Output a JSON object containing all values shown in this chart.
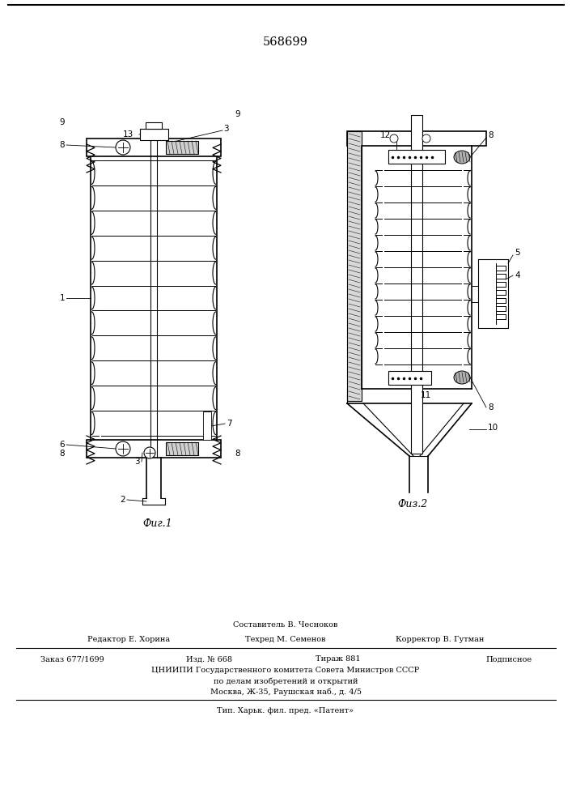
{
  "patent_number": "568699",
  "bg": "#ffffff",
  "fig1_caption": "Фиг.1",
  "fig2_caption": "Физ.2",
  "footer": {
    "sostavitel": "Составитель В. Чесноков",
    "redaktor": "Редактор Е. Хорина",
    "tehred": "Техред М. Семенов",
    "korrektor": "Корректор В. Гутман",
    "zakaz": "Заказ 677/1699",
    "izd": "Изд. № 668",
    "tirazh": "Тираж 881",
    "podpisnoe": "Подписное",
    "cniiipi1": "ЦНИИПИ Государственного комитета Совета Министров СССР",
    "cniiipi2": "по делам изобретений и открытий",
    "cniiipi3": "Москва, Ж-35, Раушская наб., д. 4/5",
    "tip": "Тип. Харьк. фил. пред. «Патент»"
  }
}
